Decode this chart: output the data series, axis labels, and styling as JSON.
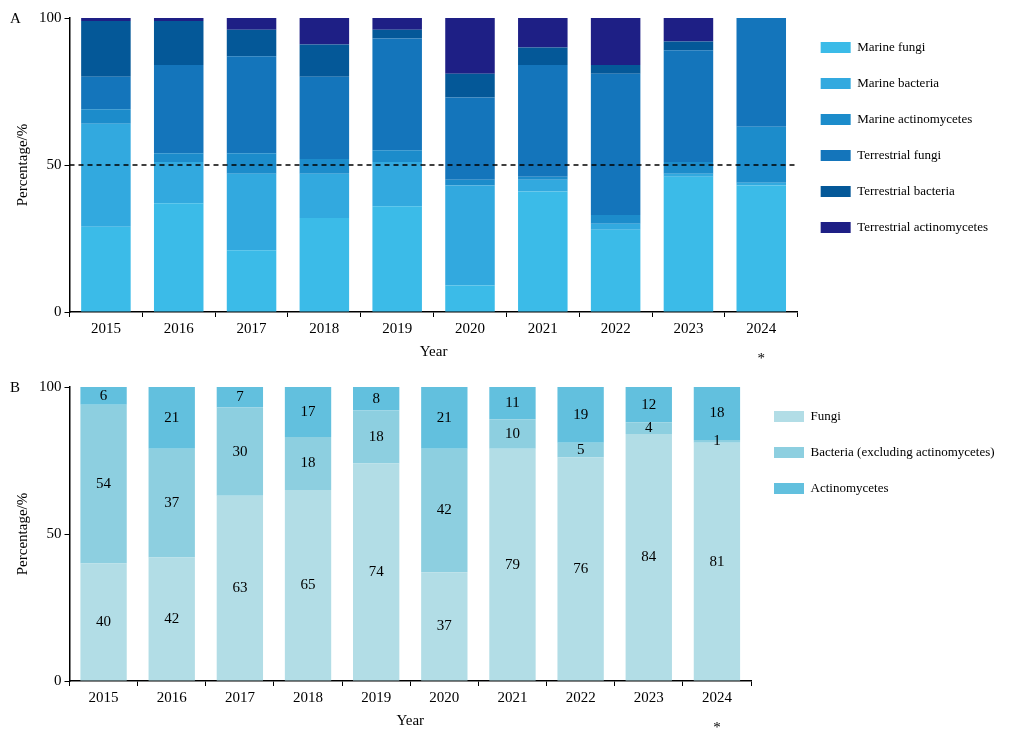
{
  "chart_data": [
    {
      "type": "bar",
      "title": "A",
      "xlabel": "Year",
      "ylabel": "Percentage/%",
      "stacked": true,
      "grid": false,
      "legend": "right",
      "categories": [
        "2015",
        "2016",
        "2017",
        "2018",
        "2019",
        "2020",
        "2021",
        "2022",
        "2023",
        "2024"
      ],
      "ylim": [
        0,
        100
      ],
      "yticks": [
        0,
        50,
        100
      ],
      "series": [
        {
          "name": "Marine fungi",
          "color": "#3bbbe8",
          "values": [
            29,
            37,
            21,
            32,
            36,
            9,
            41,
            28,
            46,
            43
          ]
        },
        {
          "name": "Marine bacteria",
          "color": "#32a9df",
          "values": [
            35,
            14,
            26,
            15,
            15,
            34,
            4,
            2,
            1,
            1
          ]
        },
        {
          "name": "Marine actinomycetes",
          "color": "#1c8ccb",
          "values": [
            5,
            3,
            7,
            5,
            4,
            2,
            1,
            3,
            4,
            19
          ]
        },
        {
          "name": "Terrestrial fungi",
          "color": "#1475bb",
          "values": [
            11,
            30,
            33,
            28,
            38,
            28,
            38,
            48,
            38,
            37
          ]
        },
        {
          "name": "Terrestrial bacteria",
          "color": "#045898",
          "values": [
            19,
            15,
            9,
            11,
            3,
            8,
            6,
            3,
            3,
            0
          ]
        },
        {
          "name": "Terrestrial actinomycetes",
          "color": "#1e1f85",
          "values": [
            1,
            1,
            4,
            9,
            4,
            19,
            10,
            16,
            8,
            0
          ]
        }
      ],
      "ref_lines": [
        {
          "axis": "y",
          "value": 50,
          "line_style": "dashed",
          "color": "#000000"
        }
      ],
      "annotations": [
        "*"
      ]
    },
    {
      "type": "bar",
      "title": "B",
      "xlabel": "Year",
      "ylabel": "Percentage/%",
      "stacked": true,
      "grid": false,
      "legend": "right",
      "data_labels": true,
      "categories": [
        "2015",
        "2016",
        "2017",
        "2018",
        "2019",
        "2020",
        "2021",
        "2022",
        "2023",
        "2024"
      ],
      "ylim": [
        0,
        100
      ],
      "yticks": [
        0,
        50,
        100
      ],
      "series": [
        {
          "name": "Fungi",
          "color": "#b2dde6",
          "values": [
            40,
            42,
            63,
            65,
            74,
            37,
            79,
            76,
            84,
            81
          ]
        },
        {
          "name": "Bacteria (excluding actinomycetes)",
          "color": "#8dcfe0",
          "values": [
            54,
            37,
            30,
            18,
            18,
            42,
            10,
            5,
            4,
            1
          ]
        },
        {
          "name": "Actinomycetes",
          "color": "#62c0de",
          "values": [
            6,
            21,
            7,
            17,
            8,
            21,
            11,
            19,
            12,
            18
          ]
        }
      ],
      "annotations": [
        "*"
      ]
    }
  ]
}
